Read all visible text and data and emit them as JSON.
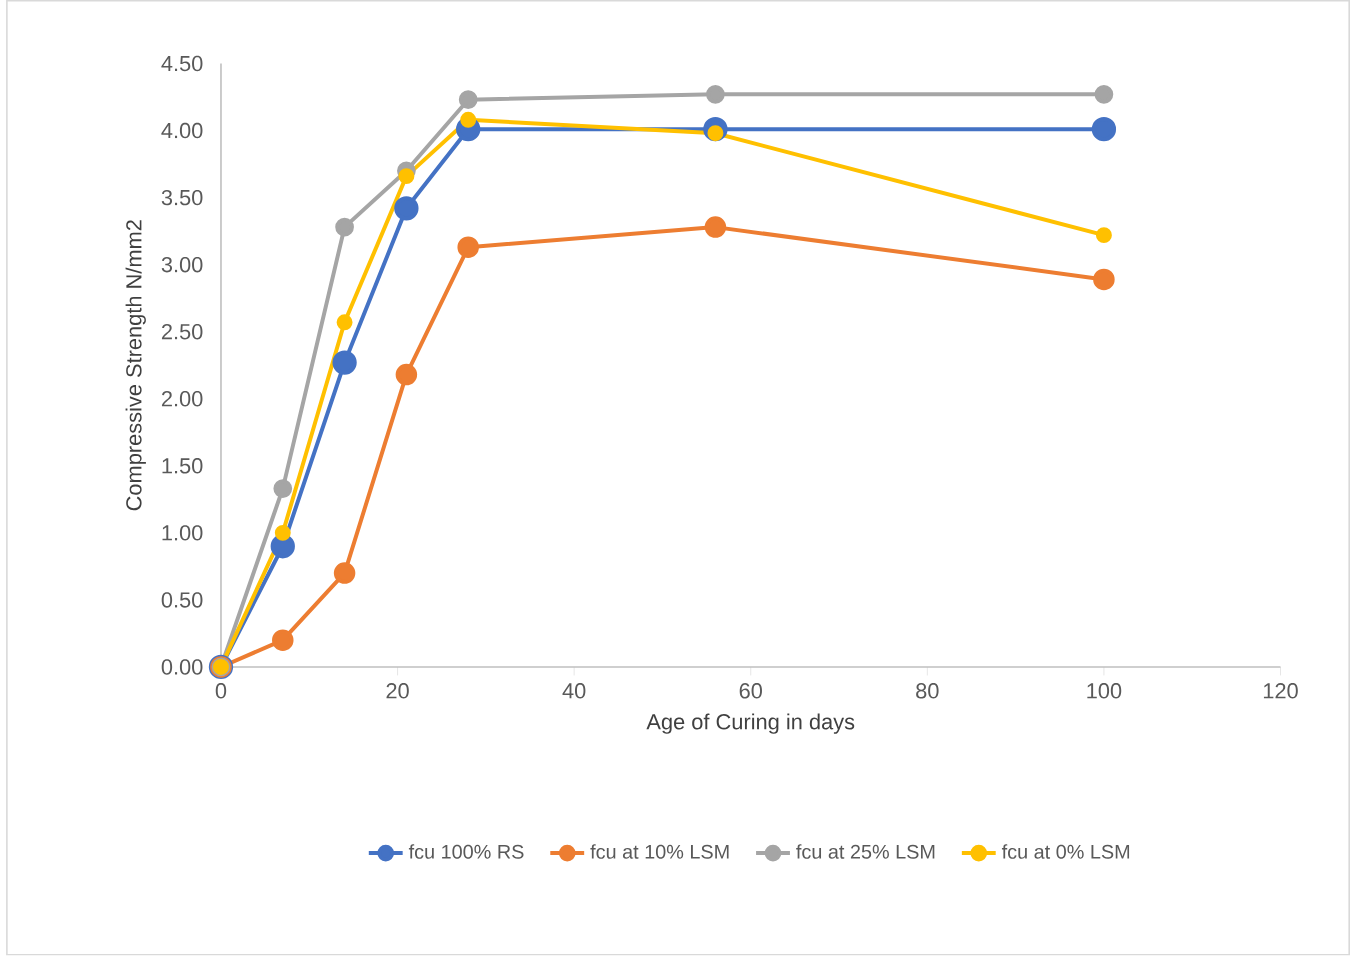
{
  "chart_data": {
    "type": "line",
    "xlabel": "Age of Curing in days",
    "ylabel": "Compressive Strength N/mm2",
    "x": [
      0,
      7,
      14,
      21,
      28,
      56,
      100
    ],
    "series": [
      {
        "name": "fcu 100% RS",
        "color": "#4472c4",
        "values": [
          0,
          0.9,
          2.27,
          3.42,
          4.01,
          4.01,
          4.01
        ]
      },
      {
        "name": "fcu at 10% LSM",
        "color": "#ed7d31",
        "values": [
          0,
          0.2,
          0.7,
          2.18,
          3.13,
          3.28,
          2.89
        ]
      },
      {
        "name": "fcu at 25% LSM",
        "color": "#a5a5a5",
        "values": [
          0,
          1.33,
          3.28,
          3.7,
          4.23,
          4.27,
          4.27
        ]
      },
      {
        "name": "fcu at 0% LSM",
        "color": "#ffc000",
        "values": [
          0,
          1.0,
          2.57,
          3.66,
          4.08,
          3.98,
          3.22
        ]
      }
    ],
    "xlim": [
      0,
      120
    ],
    "xticks": [
      0,
      20,
      40,
      60,
      80,
      100,
      120
    ],
    "ylim": [
      0,
      4.5
    ],
    "yticks": [
      {
        "value": 0,
        "label": "0.00"
      },
      {
        "value": 0.5,
        "label": "0.50"
      },
      {
        "value": 1,
        "label": "1.00"
      },
      {
        "value": 1.5,
        "label": "1.50"
      },
      {
        "value": 2,
        "label": "2.00"
      },
      {
        "value": 2.5,
        "label": "2.50"
      },
      {
        "value": 3,
        "label": "3.00"
      },
      {
        "value": 3.5,
        "label": "3.50"
      },
      {
        "value": 4,
        "label": "4.00"
      },
      {
        "value": 4.5,
        "label": "4.50"
      }
    ],
    "legend": "bottom",
    "marker": "circle",
    "line_style": "solid"
  }
}
